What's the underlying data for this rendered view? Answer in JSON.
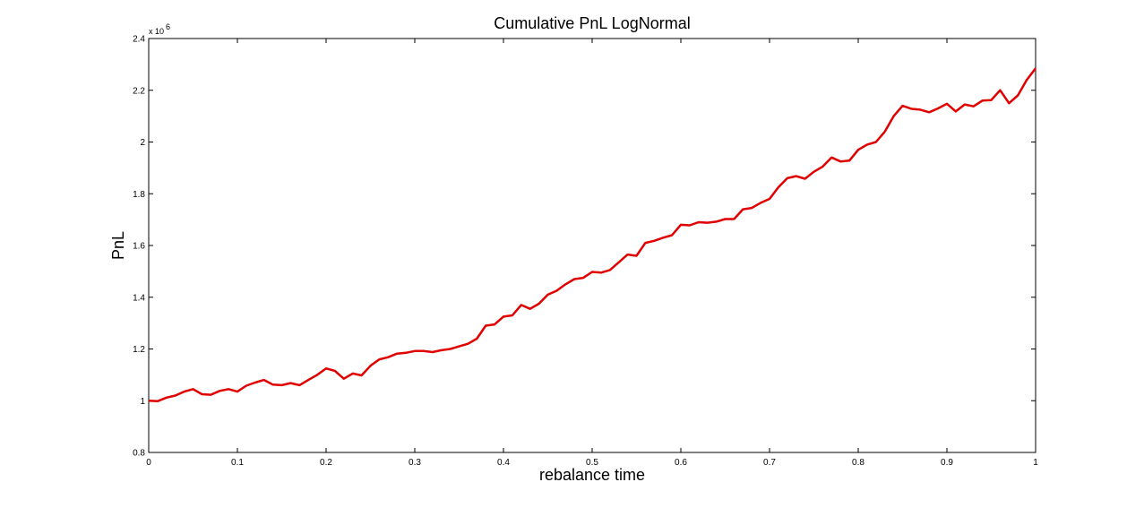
{
  "chart_data": {
    "type": "line",
    "title": "Cumulative PnL LogNormal",
    "xlabel": "rebalance time",
    "ylabel": "PnL",
    "y_multiplier_label": "x 10",
    "y_multiplier_exponent": "6",
    "xlim": [
      0,
      1
    ],
    "ylim": [
      0.8,
      2.4
    ],
    "grid": false,
    "x_ticks": [
      "0",
      "0.1",
      "0.2",
      "0.3",
      "0.4",
      "0.5",
      "0.6",
      "0.7",
      "0.8",
      "0.9",
      "1"
    ],
    "y_ticks": [
      "0.8",
      "1",
      "1.2",
      "1.4",
      "1.6",
      "1.8",
      "2",
      "2.2",
      "2.4"
    ],
    "series": [
      {
        "color": "#e00000",
        "x": [
          0,
          0.01,
          0.02,
          0.03,
          0.04,
          0.05,
          0.06,
          0.07,
          0.08,
          0.09,
          0.1,
          0.11,
          0.12,
          0.13,
          0.14,
          0.15,
          0.16,
          0.17,
          0.18,
          0.19,
          0.2,
          0.21,
          0.22,
          0.23,
          0.24,
          0.25,
          0.26,
          0.27,
          0.28,
          0.29,
          0.3,
          0.31,
          0.32,
          0.33,
          0.34,
          0.35,
          0.36,
          0.37,
          0.38,
          0.39,
          0.4,
          0.41,
          0.42,
          0.43,
          0.44,
          0.45,
          0.46,
          0.47,
          0.48,
          0.49,
          0.5,
          0.51,
          0.52,
          0.53,
          0.54,
          0.55,
          0.56,
          0.57,
          0.58,
          0.59,
          0.6,
          0.61,
          0.62,
          0.63,
          0.64,
          0.65,
          0.66,
          0.67,
          0.68,
          0.69,
          0.7,
          0.71,
          0.72,
          0.73,
          0.74,
          0.75,
          0.76,
          0.77,
          0.78,
          0.79,
          0.8,
          0.81,
          0.82,
          0.83,
          0.84,
          0.85,
          0.86,
          0.87,
          0.88,
          0.89,
          0.9,
          0.91,
          0.92,
          0.93,
          0.94,
          0.95,
          0.96,
          0.97,
          0.98,
          0.99,
          1.0
        ],
        "y": [
          1.0,
          0.998,
          1.012,
          1.02,
          1.035,
          1.045,
          1.025,
          1.023,
          1.038,
          1.045,
          1.035,
          1.058,
          1.07,
          1.08,
          1.062,
          1.06,
          1.068,
          1.06,
          1.08,
          1.1,
          1.125,
          1.115,
          1.085,
          1.105,
          1.098,
          1.135,
          1.16,
          1.168,
          1.182,
          1.185,
          1.192,
          1.192,
          1.188,
          1.195,
          1.2,
          1.21,
          1.22,
          1.24,
          1.29,
          1.295,
          1.325,
          1.33,
          1.37,
          1.355,
          1.375,
          1.41,
          1.425,
          1.45,
          1.47,
          1.475,
          1.498,
          1.495,
          1.505,
          1.535,
          1.565,
          1.56,
          1.61,
          1.618,
          1.63,
          1.64,
          1.68,
          1.678,
          1.69,
          1.688,
          1.692,
          1.702,
          1.702,
          1.74,
          1.745,
          1.765,
          1.78,
          1.825,
          1.86,
          1.868,
          1.858,
          1.885,
          1.905,
          1.94,
          1.925,
          1.928,
          1.97,
          1.99,
          2.0,
          2.04,
          2.1,
          2.14,
          2.128,
          2.125,
          2.115,
          2.13,
          2.148,
          2.118,
          2.145,
          2.138,
          2.16,
          2.162,
          2.2,
          2.15,
          2.18,
          2.24,
          2.285
        ]
      }
    ]
  }
}
